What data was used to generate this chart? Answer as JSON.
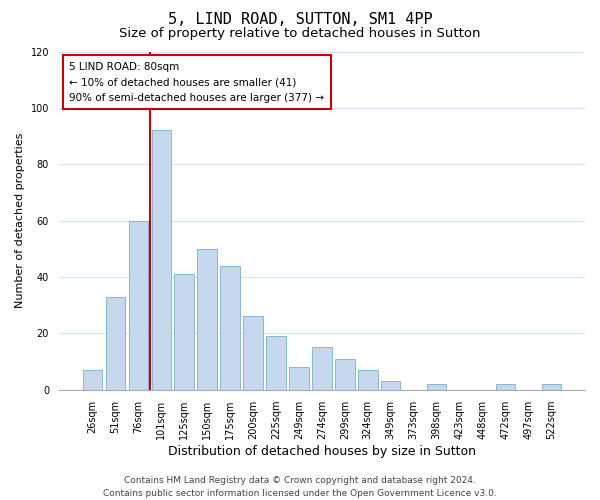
{
  "title": "5, LIND ROAD, SUTTON, SM1 4PP",
  "subtitle": "Size of property relative to detached houses in Sutton",
  "xlabel": "Distribution of detached houses by size in Sutton",
  "ylabel": "Number of detached properties",
  "bar_labels": [
    "26sqm",
    "51sqm",
    "76sqm",
    "101sqm",
    "125sqm",
    "150sqm",
    "175sqm",
    "200sqm",
    "225sqm",
    "249sqm",
    "274sqm",
    "299sqm",
    "324sqm",
    "349sqm",
    "373sqm",
    "398sqm",
    "423sqm",
    "448sqm",
    "472sqm",
    "497sqm",
    "522sqm"
  ],
  "bar_values": [
    7,
    33,
    60,
    92,
    41,
    50,
    44,
    26,
    19,
    8,
    15,
    11,
    7,
    3,
    0,
    2,
    0,
    0,
    2,
    0,
    2
  ],
  "bar_color": "#c5d8ee",
  "bar_edge_color": "#7aafd4",
  "vline_x_idx": 2,
  "vline_color": "#cc0000",
  "ylim": [
    0,
    120
  ],
  "yticks": [
    0,
    20,
    40,
    60,
    80,
    100,
    120
  ],
  "annotation_title": "5 LIND ROAD: 80sqm",
  "annotation_line1": "← 10% of detached houses are smaller (41)",
  "annotation_line2": "90% of semi-detached houses are larger (377) →",
  "annotation_box_color": "#ffffff",
  "annotation_box_edge_color": "#cc0000",
  "footer_line1": "Contains HM Land Registry data © Crown copyright and database right 2024.",
  "footer_line2": "Contains public sector information licensed under the Open Government Licence v3.0.",
  "title_fontsize": 11,
  "subtitle_fontsize": 9.5,
  "xlabel_fontsize": 9,
  "ylabel_fontsize": 8,
  "tick_fontsize": 7,
  "footer_fontsize": 6.5,
  "annotation_fontsize": 7.5,
  "background_color": "#ffffff",
  "grid_color": "#d0e4f5"
}
